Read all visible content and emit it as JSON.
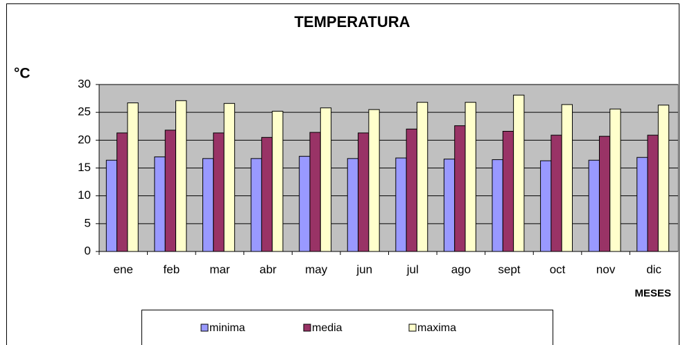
{
  "chart_data": {
    "type": "bar",
    "title": "TEMPERATURA",
    "y_label": "°C",
    "x_label": "MESES",
    "categories": [
      "ene",
      "feb",
      "mar",
      "abr",
      "may",
      "jun",
      "jul",
      "ago",
      "sept",
      "oct",
      "nov",
      "dic"
    ],
    "series": [
      {
        "name": "minima",
        "color": "#9999ff",
        "values": [
          16.4,
          17.0,
          16.7,
          16.7,
          17.1,
          16.7,
          16.8,
          16.6,
          16.5,
          16.3,
          16.4,
          16.9
        ]
      },
      {
        "name": "media",
        "color": "#993366",
        "values": [
          21.3,
          21.8,
          21.3,
          20.5,
          21.4,
          21.3,
          22.0,
          22.6,
          21.6,
          20.9,
          20.7,
          20.9
        ]
      },
      {
        "name": "maxima",
        "color": "#ffffcc",
        "values": [
          26.7,
          27.1,
          26.6,
          25.2,
          25.8,
          25.5,
          26.8,
          26.8,
          28.1,
          26.4,
          25.6,
          26.3
        ]
      }
    ],
    "ylim": [
      0,
      30
    ],
    "yticks": [
      0,
      5,
      10,
      15,
      20,
      25,
      30
    ],
    "grid": true,
    "legend": "bottom"
  }
}
